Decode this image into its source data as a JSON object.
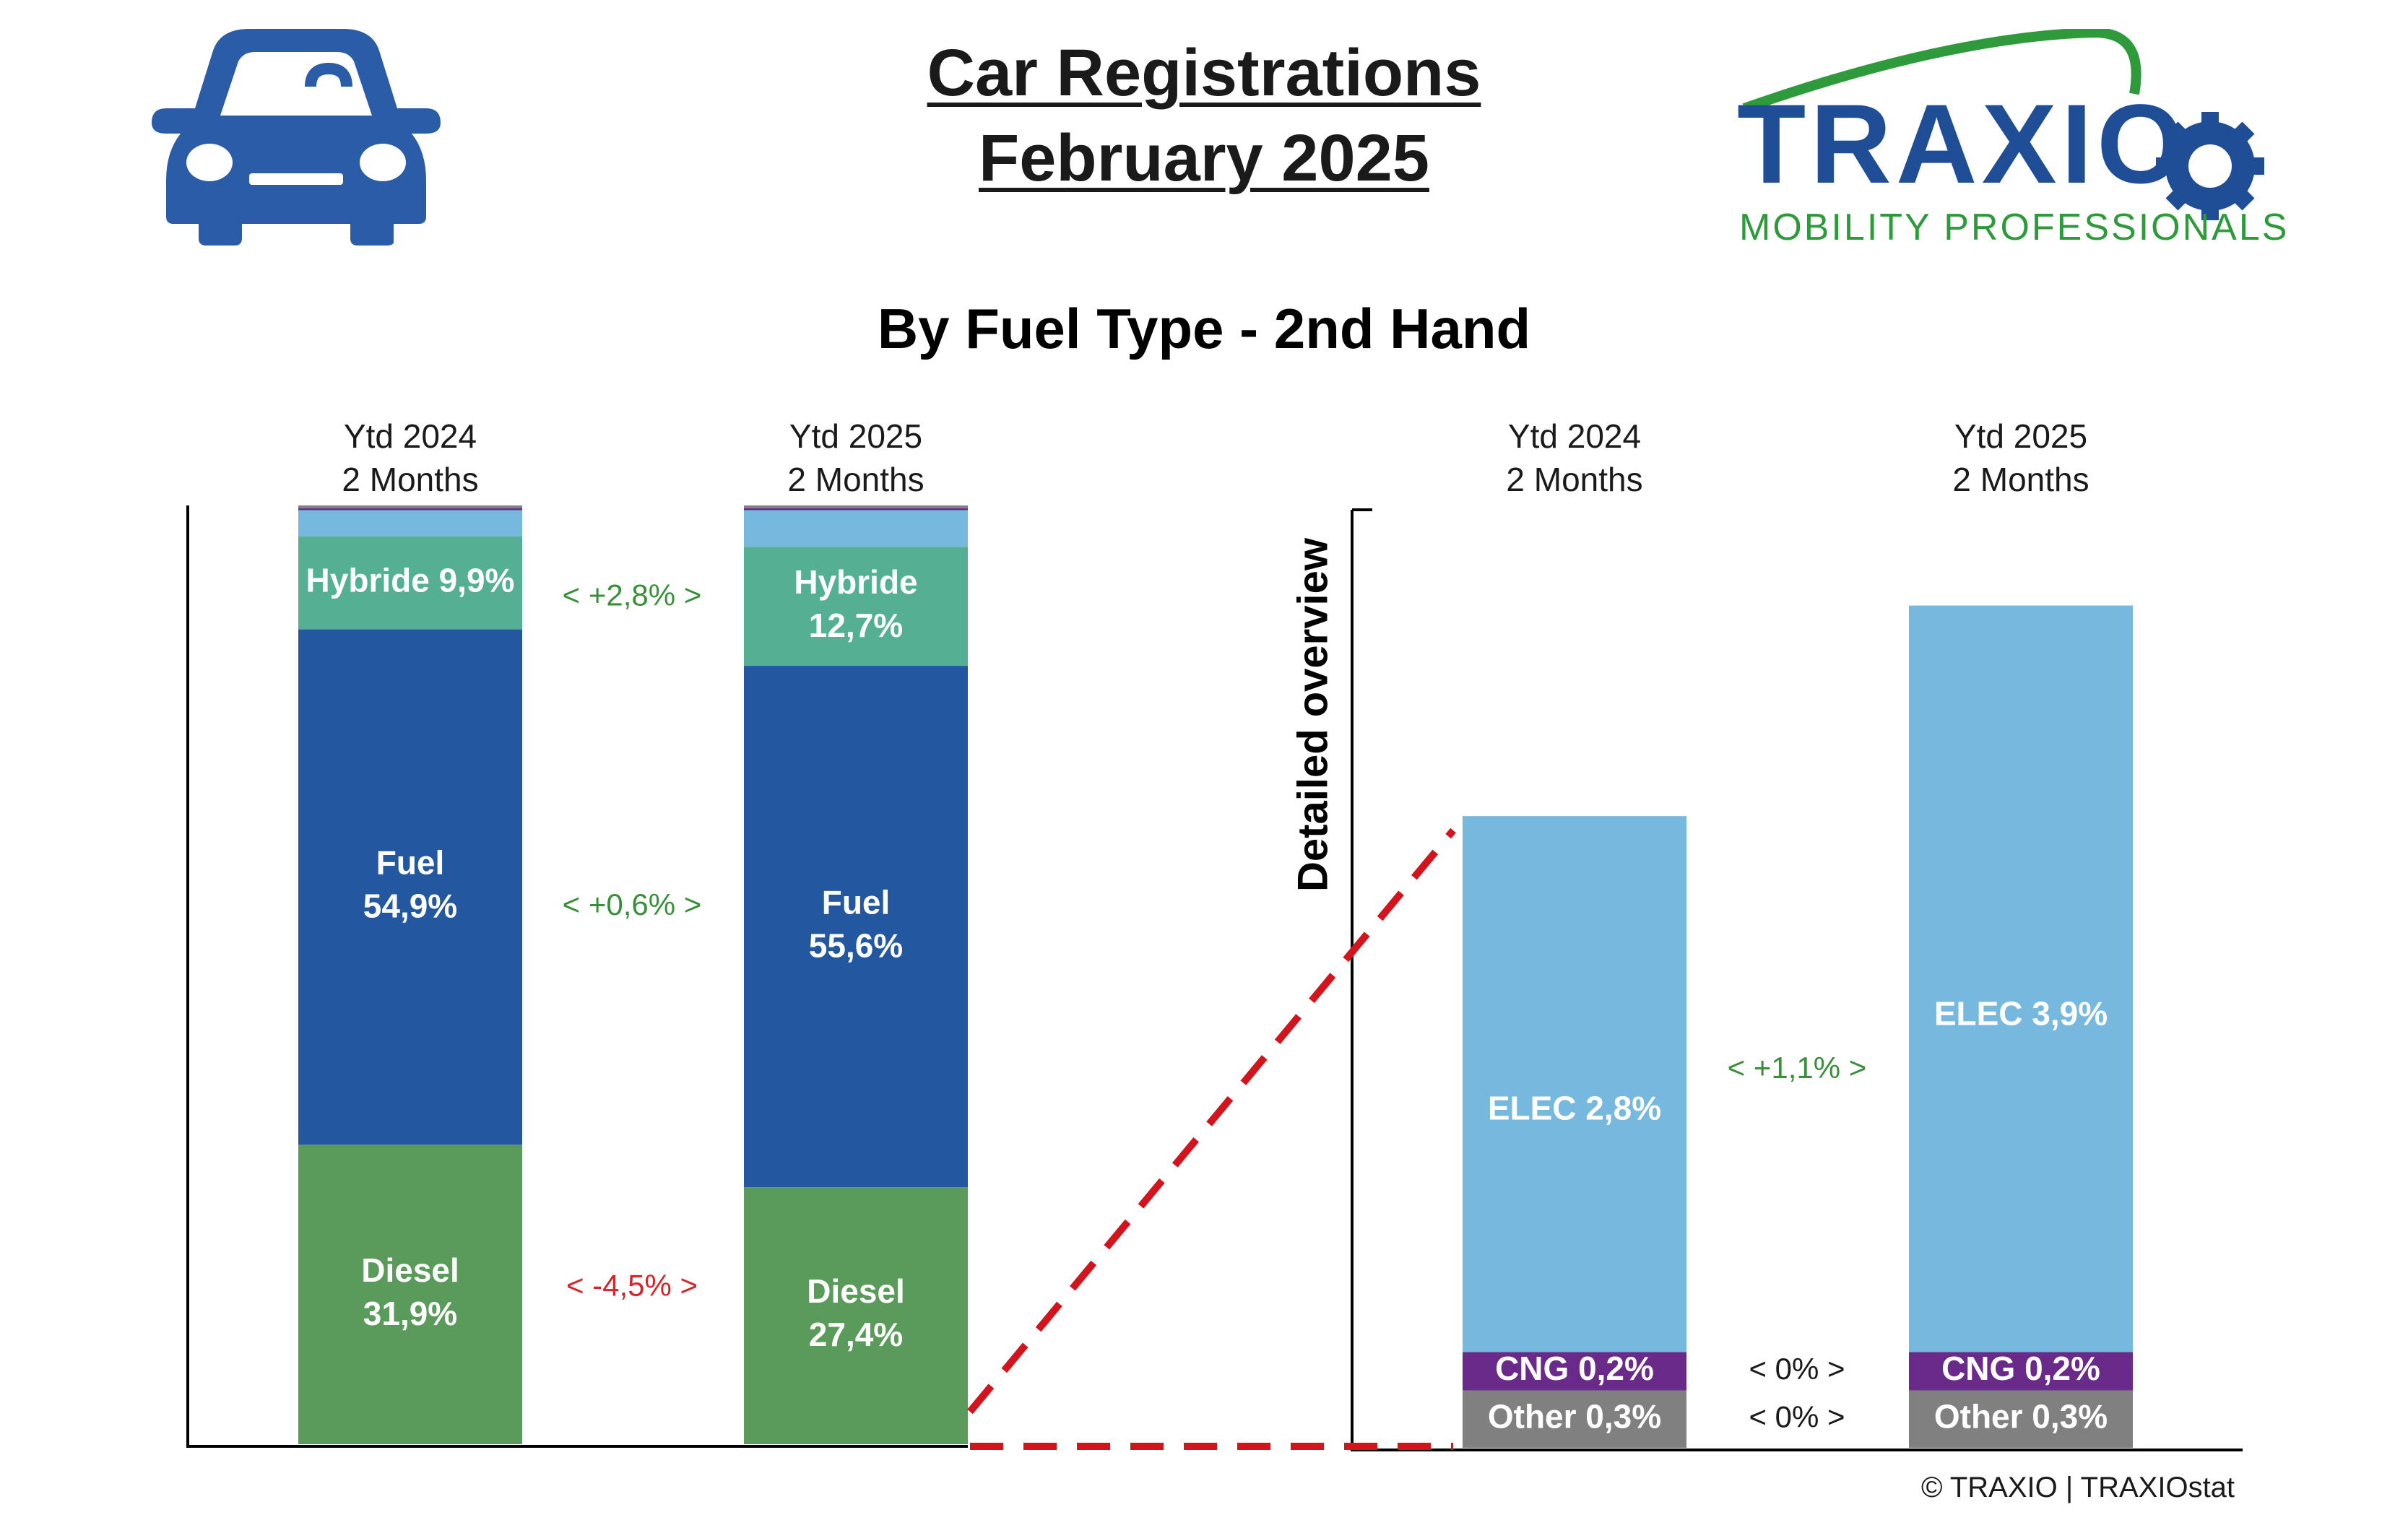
{
  "header": {
    "title_line1": "Car Registrations",
    "title_line2": "February 2025",
    "subtitle": "By Fuel Type - 2nd Hand",
    "car_icon": "car-icon",
    "logo": {
      "name": "TRAXIO",
      "tagline": "MOBILITY PROFESSIONALS",
      "name_color": "#1f4e96",
      "tagline_color": "#2e9a3c"
    }
  },
  "footer": {
    "copyright": "© TRAXIO | TRAXIOstat"
  },
  "chart_data": [
    {
      "type": "bar",
      "stacked": true,
      "categories": [
        "Ytd 2024\n2 Months",
        "Ytd 2025\n2 Months"
      ],
      "series": [
        {
          "name": "Diesel",
          "label_lines": [
            [
              "Diesel",
              "31,9%"
            ],
            [
              "Diesel",
              "27,4%"
            ]
          ],
          "values": [
            31.9,
            27.4
          ],
          "color": "#5a9a5a"
        },
        {
          "name": "Fuel",
          "label_lines": [
            [
              "Fuel",
              "54,9%"
            ],
            [
              "Fuel",
              "55,6%"
            ]
          ],
          "values": [
            54.9,
            55.6
          ],
          "color": "#2358a0"
        },
        {
          "name": "Hybride",
          "label_lines": [
            [
              "Hybride 9,9%"
            ],
            [
              "Hybride",
              "12,7%"
            ]
          ],
          "values": [
            9.9,
            12.7
          ],
          "color": "#55b093"
        },
        {
          "name": "ELEC",
          "label_lines": [
            [],
            []
          ],
          "values": [
            2.8,
            3.9
          ],
          "color": "#77b8de"
        },
        {
          "name": "CNG",
          "label_lines": [
            [],
            []
          ],
          "values": [
            0.2,
            0.2
          ],
          "color": "#6a2a8a"
        },
        {
          "name": "Other",
          "label_lines": [
            [],
            []
          ],
          "values": [
            0.3,
            0.3
          ],
          "color": "#808080"
        }
      ],
      "differences": [
        {
          "series": "Diesel",
          "text": "<  -4,5%  >",
          "color": "#d4262a"
        },
        {
          "series": "Fuel",
          "text": "<  +0,6%  >",
          "color": "#3a8f3a"
        },
        {
          "series": "Hybride",
          "text": "<  +2,8%  >",
          "color": "#3a8f3a"
        }
      ]
    },
    {
      "type": "bar",
      "stacked": true,
      "ylabel": "Detailed overview",
      "categories": [
        "Ytd 2024\n2 Months",
        "Ytd 2025\n2 Months"
      ],
      "series": [
        {
          "name": "Other",
          "labels": [
            "Other 0,3%",
            "Other 0,3%"
          ],
          "values": [
            0.3,
            0.3
          ],
          "color": "#808080"
        },
        {
          "name": "CNG",
          "labels": [
            "CNG 0,2%",
            "CNG 0,2%"
          ],
          "values": [
            0.2,
            0.2
          ],
          "color": "#6a2a8a"
        },
        {
          "name": "ELEC",
          "labels": [
            "ELEC 2,8%",
            "ELEC 3,9%"
          ],
          "values": [
            2.8,
            3.9
          ],
          "color": "#77b8de"
        }
      ],
      "differences": [
        {
          "series": "ELEC",
          "text": "<  +1,1%  >",
          "color": "#3a8f3a"
        },
        {
          "series": "CNG",
          "text": "<  0%  >",
          "color": "#1a1a1a"
        },
        {
          "series": "Other",
          "text": "<  0%  >",
          "color": "#1a1a1a"
        }
      ]
    }
  ]
}
